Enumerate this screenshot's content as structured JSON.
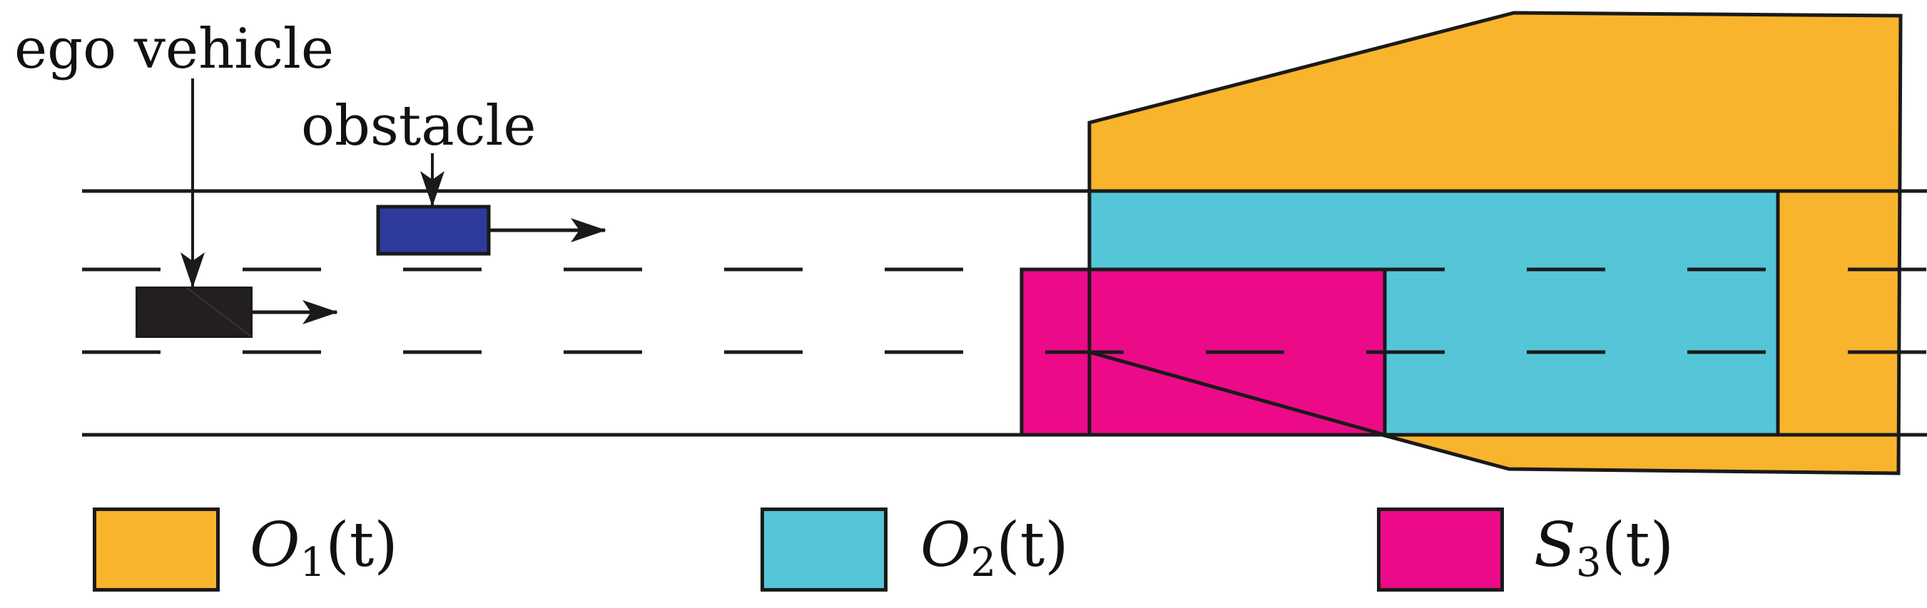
{
  "annotations": {
    "ego_vehicle": "ego vehicle",
    "obstacle": "obstacle"
  },
  "legend": [
    {
      "symbol": "O",
      "subscript": "1",
      "arg": "(t)",
      "color": "#F8B42C"
    },
    {
      "symbol": "O",
      "subscript": "2",
      "arg": "(t)",
      "color": "#55C5D8"
    },
    {
      "symbol": "S",
      "subscript": "3",
      "arg": "(t)",
      "color": "#EC0A89"
    }
  ],
  "colors": {
    "ego_vehicle": "#231F20",
    "obstacle": "#2E3A9C",
    "lines": "#1a1a1a"
  }
}
